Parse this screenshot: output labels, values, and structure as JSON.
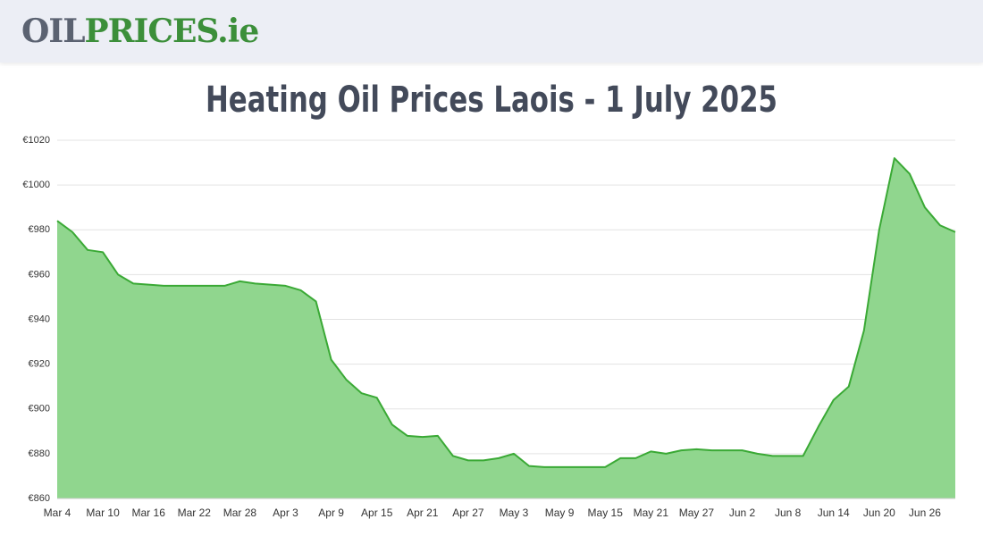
{
  "header": {
    "logo_part1": "OIL",
    "logo_part2": "PRICES.ie"
  },
  "chart_data": {
    "type": "area",
    "title": "Heating Oil Prices Laois - 1 July 2025",
    "categories": [
      "Mar 4",
      null,
      null,
      "Mar 10",
      null,
      null,
      "Mar 16",
      null,
      null,
      "Mar 22",
      null,
      null,
      "Mar 28",
      null,
      null,
      "Apr 3",
      null,
      null,
      "Apr 9",
      null,
      null,
      "Apr 15",
      null,
      null,
      "Apr 21",
      null,
      null,
      "Apr 27",
      null,
      null,
      "May 3",
      null,
      null,
      "May 9",
      null,
      null,
      "May 15",
      null,
      null,
      "May 21",
      null,
      null,
      "May 27",
      null,
      null,
      "Jun 2",
      null,
      null,
      "Jun 8",
      null,
      null,
      "Jun 14",
      null,
      null,
      "Jun 20",
      null,
      null,
      "Jun 26",
      null,
      null
    ],
    "values": [
      984,
      979,
      971,
      970,
      960,
      956,
      955.5,
      955,
      955,
      955,
      955,
      955,
      957,
      956,
      955.5,
      955,
      953,
      948,
      922,
      913,
      907,
      905,
      893,
      888,
      887.5,
      888,
      879,
      877,
      877,
      878,
      880,
      874.5,
      874,
      874,
      874,
      874,
      874,
      878,
      878,
      881,
      880,
      881.5,
      882,
      881.5,
      881.5,
      881.5,
      880,
      879,
      879,
      879,
      892,
      904,
      910,
      935,
      980,
      1012,
      1005,
      990,
      982,
      979
    ],
    "color": "#3aa935",
    "fill": "#90d68e",
    "ylim": [
      860,
      1020
    ],
    "yticks": [
      {
        "value": 860,
        "label": "€860"
      },
      {
        "value": 880,
        "label": "€880"
      },
      {
        "value": 900,
        "label": "€900"
      },
      {
        "value": 920,
        "label": "€920"
      },
      {
        "value": 940,
        "label": "€940"
      },
      {
        "value": 960,
        "label": "€960"
      },
      {
        "value": 980,
        "label": "€980"
      },
      {
        "value": 1000,
        "label": "€1000"
      },
      {
        "value": 1020,
        "label": "€1020"
      }
    ],
    "grid": true
  }
}
